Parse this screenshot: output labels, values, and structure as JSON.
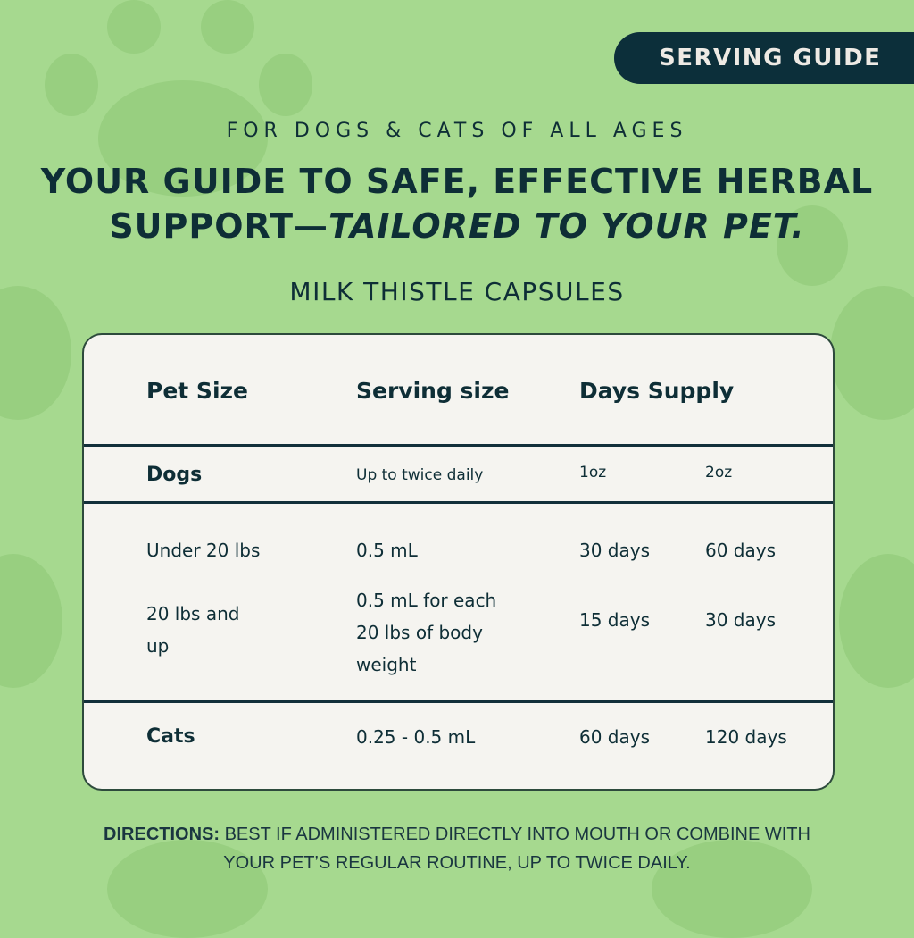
{
  "badge": "SERVING GUIDE",
  "subtitle": "FOR DOGS & CATS OF ALL AGES",
  "headline": {
    "line1": "YOUR GUIDE TO SAFE, EFFECTIVE HERBAL",
    "line2_plain": "SUPPORT—",
    "line2_italic": "TAILORED TO YOUR PET."
  },
  "product": "MILK THISTLE CAPSULES",
  "table": {
    "headers": [
      "Pet Size",
      "Serving size",
      "Days Supply"
    ],
    "dogs": {
      "label": "Dogs",
      "serving": "Up to twice daily",
      "size1": "1oz",
      "size2": "2oz"
    },
    "rows": [
      {
        "size": "Under 20 lbs",
        "serving": "0.5 mL",
        "d1": "30 days",
        "d2": "60 days"
      },
      {
        "size_l1": "20 lbs and",
        "size_l2": "up",
        "serving_l1": "0.5 mL for each",
        "serving_l2": "20 lbs of body",
        "serving_l3": "weight",
        "d1": "15 days",
        "d2": "30 days"
      }
    ],
    "cats": {
      "label": "Cats",
      "serving": "0.25 - 0.5 mL",
      "d1": "60 days",
      "d2": "120 days"
    }
  },
  "directions": {
    "label": "DIRECTIONS:",
    "text1": "BEST IF ADMINISTERED DIRECTLY INTO MOUTH OR COMBINE WITH",
    "text2": "YOUR PET’S REGULAR ROUTINE, UP TO TWICE DAILY."
  },
  "colors": {
    "background": "#a6d98f",
    "paw": "#98cf80",
    "dark": "#0c2f3a",
    "card": "#f5f4f0"
  }
}
